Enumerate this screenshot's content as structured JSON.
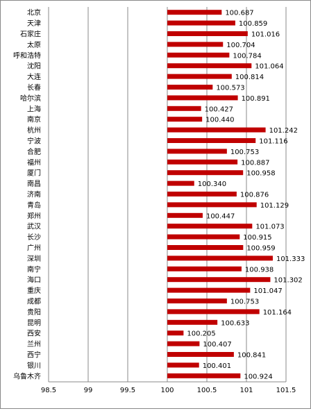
{
  "chart_data": {
    "type": "bar",
    "orientation": "horizontal",
    "categories": [
      "北京",
      "天津",
      "石家庄",
      "太原",
      "呼和浩特",
      "沈阳",
      "大连",
      "长春",
      "哈尔滨",
      "上海",
      "南京",
      "杭州",
      "宁波",
      "合肥",
      "福州",
      "厦门",
      "南昌",
      "济南",
      "青岛",
      "郑州",
      "武汉",
      "长沙",
      "广州",
      "深圳",
      "南宁",
      "海口",
      "重庆",
      "成都",
      "贵阳",
      "昆明",
      "西安",
      "兰州",
      "西宁",
      "银川",
      "乌鲁木齐"
    ],
    "values": [
      100.687,
      100.859,
      101.016,
      100.704,
      100.784,
      101.064,
      100.814,
      100.573,
      100.891,
      100.427,
      100.44,
      101.242,
      101.116,
      100.753,
      100.887,
      100.958,
      100.34,
      100.876,
      101.129,
      100.447,
      101.073,
      100.915,
      100.959,
      101.333,
      100.938,
      101.302,
      101.047,
      100.753,
      101.164,
      100.633,
      100.205,
      100.407,
      100.841,
      100.401,
      100.924
    ],
    "value_labels": [
      "100.687",
      "100.859",
      "101.016",
      "100.704",
      "100.784",
      "101.064",
      "100.814",
      "100.573",
      "100.891",
      "100.427",
      "100.440",
      "101.242",
      "101.116",
      "100.753",
      "100.887",
      "100.958",
      "100.340",
      "100.876",
      "101.129",
      "100.447",
      "101.073",
      "100.915",
      "100.959",
      "101.333",
      "100.938",
      "101.302",
      "101.047",
      "100.753",
      "101.164",
      "100.633",
      "100.205",
      "100.407",
      "100.841",
      "100.401",
      "100.924"
    ],
    "xlim": [
      98.5,
      101.5
    ],
    "base": 100,
    "ticks": [
      "98.5",
      "99",
      "99.5",
      "100",
      "100.5",
      "101",
      "101.5"
    ],
    "gridlines": "vertical",
    "title": "",
    "xlabel": "",
    "ylabel": "",
    "colors": {
      "bar": "#C00000",
      "grid": "#888888",
      "axis": "#888888",
      "text": "#000000",
      "background": "#ffffff"
    }
  }
}
